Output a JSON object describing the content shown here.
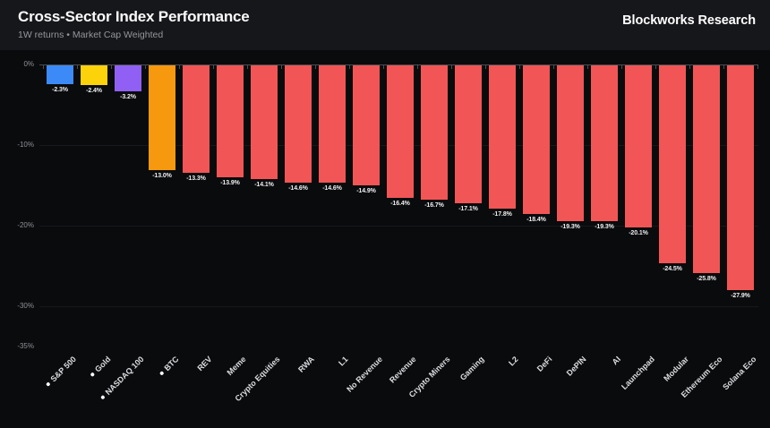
{
  "header": {
    "title": "Cross-Sector Index Performance",
    "subtitle": "1W returns • Market Cap Weighted",
    "brand": "Blockworks Research"
  },
  "colors": {
    "header_background": "#16171b",
    "chart_background": "#0a0b0d",
    "axis": "#4b4c50",
    "gridline": "#17181c",
    "ytick_label": "#8f9094",
    "value_label": "#efeff1",
    "category_label": "#dcdde0",
    "category_dot": "#ffffff",
    "blue": "#3c8af7",
    "yellow": "#fcd20b",
    "purple": "#9060f4",
    "orange": "#f7990e",
    "red": "#f25555"
  },
  "chart_data": {
    "type": "bar",
    "title": "Cross-Sector Index Performance",
    "subtitle": "1W returns • Market Cap Weighted",
    "xlabel": "",
    "ylabel": "",
    "unit": "%",
    "ylim": [
      -35,
      0
    ],
    "ytick_labels": [
      "0%",
      "-10%",
      "-20%",
      "-30%",
      "-35%"
    ],
    "ytick_values": [
      0,
      -10,
      -20,
      -30,
      -35
    ],
    "grid": "faint horizontal gridlines at -10, -20, -30",
    "legend": "none",
    "categories": [
      "S&P 500",
      "Gold",
      "NASDAQ 100",
      "BTC",
      "REV",
      "Meme",
      "Crypto Equities",
      "RWA",
      "L1",
      "No Revenue",
      "Revenue",
      "Crypto Miners",
      "Gaming",
      "L2",
      "DeFi",
      "DePIN",
      "AI",
      "Launchpad",
      "Modular",
      "Ethereum Eco",
      "Solana Eco"
    ],
    "values": [
      -2.3,
      -2.4,
      -3.2,
      -13.0,
      -13.3,
      -13.9,
      -14.1,
      -14.6,
      -14.6,
      -14.9,
      -16.4,
      -16.7,
      -17.1,
      -17.8,
      -18.4,
      -19.3,
      -19.3,
      -20.1,
      -24.5,
      -25.8,
      -27.9
    ],
    "bars": [
      {
        "category": "S&P 500",
        "value": -2.3,
        "label": "-2.3%",
        "color": "#3c8af7",
        "dot": true
      },
      {
        "category": "Gold",
        "value": -2.4,
        "label": "-2.4%",
        "color": "#fcd20b",
        "dot": true
      },
      {
        "category": "NASDAQ 100",
        "value": -3.2,
        "label": "-3.2%",
        "color": "#9060f4",
        "dot": true
      },
      {
        "category": "BTC",
        "value": -13.0,
        "label": "-13.0%",
        "color": "#f7990e",
        "dot": true
      },
      {
        "category": "REV",
        "value": -13.3,
        "label": "-13.3%",
        "color": "#f25555",
        "dot": false
      },
      {
        "category": "Meme",
        "value": -13.9,
        "label": "-13.9%",
        "color": "#f25555",
        "dot": false
      },
      {
        "category": "Crypto Equities",
        "value": -14.1,
        "label": "-14.1%",
        "color": "#f25555",
        "dot": false
      },
      {
        "category": "RWA",
        "value": -14.6,
        "label": "-14.6%",
        "color": "#f25555",
        "dot": false
      },
      {
        "category": "L1",
        "value": -14.6,
        "label": "-14.6%",
        "color": "#f25555",
        "dot": false
      },
      {
        "category": "No Revenue",
        "value": -14.9,
        "label": "-14.9%",
        "color": "#f25555",
        "dot": false
      },
      {
        "category": "Revenue",
        "value": -16.4,
        "label": "-16.4%",
        "color": "#f25555",
        "dot": false
      },
      {
        "category": "Crypto Miners",
        "value": -16.7,
        "label": "-16.7%",
        "color": "#f25555",
        "dot": false
      },
      {
        "category": "Gaming",
        "value": -17.1,
        "label": "-17.1%",
        "color": "#f25555",
        "dot": false
      },
      {
        "category": "L2",
        "value": -17.8,
        "label": "-17.8%",
        "color": "#f25555",
        "dot": false
      },
      {
        "category": "DeFi",
        "value": -18.4,
        "label": "-18.4%",
        "color": "#f25555",
        "dot": false
      },
      {
        "category": "DePIN",
        "value": -19.3,
        "label": "-19.3%",
        "color": "#f25555",
        "dot": false
      },
      {
        "category": "AI",
        "value": -19.3,
        "label": "-19.3%",
        "color": "#f25555",
        "dot": false
      },
      {
        "category": "Launchpad",
        "value": -20.1,
        "label": "-20.1%",
        "color": "#f25555",
        "dot": false
      },
      {
        "category": "Modular",
        "value": -24.5,
        "label": "-24.5%",
        "color": "#f25555",
        "dot": false
      },
      {
        "category": "Ethereum Eco",
        "value": -25.8,
        "label": "-25.8%",
        "color": "#f25555",
        "dot": false
      },
      {
        "category": "Solana Eco",
        "value": -27.9,
        "label": "-27.9%",
        "color": "#f25555",
        "dot": false
      }
    ]
  }
}
